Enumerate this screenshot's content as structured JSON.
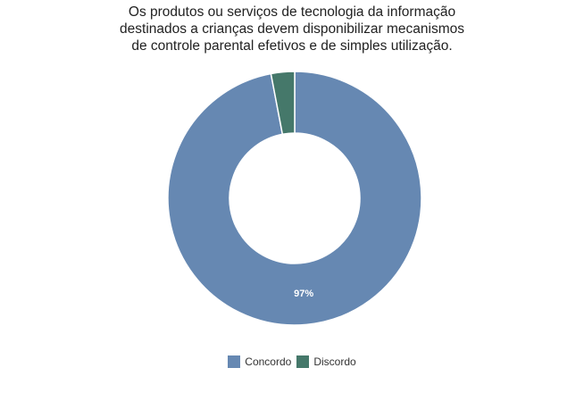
{
  "chart_data": {
    "type": "pie",
    "variant": "donut",
    "title": "Os produtos ou serviços de tecnologia da informação destinados a crianças devem disponibilizar mecanismos de controle parental efetivos e de simples utilização.",
    "title_lines": [
      "Os produtos ou serviços de tecnologia da informação",
      "destinados a crianças devem disponibilizar mecanismos",
      "de controle parental efetivos e de simples utilização."
    ],
    "categories": [
      "Concordo",
      "Discordo"
    ],
    "values": [
      97,
      3
    ],
    "colors": [
      "#6688b2",
      "#45786a"
    ],
    "data_labels": [
      "97%",
      ""
    ],
    "legend": {
      "position": "bottom",
      "entries": [
        "Concordo",
        "Discordo"
      ]
    }
  }
}
